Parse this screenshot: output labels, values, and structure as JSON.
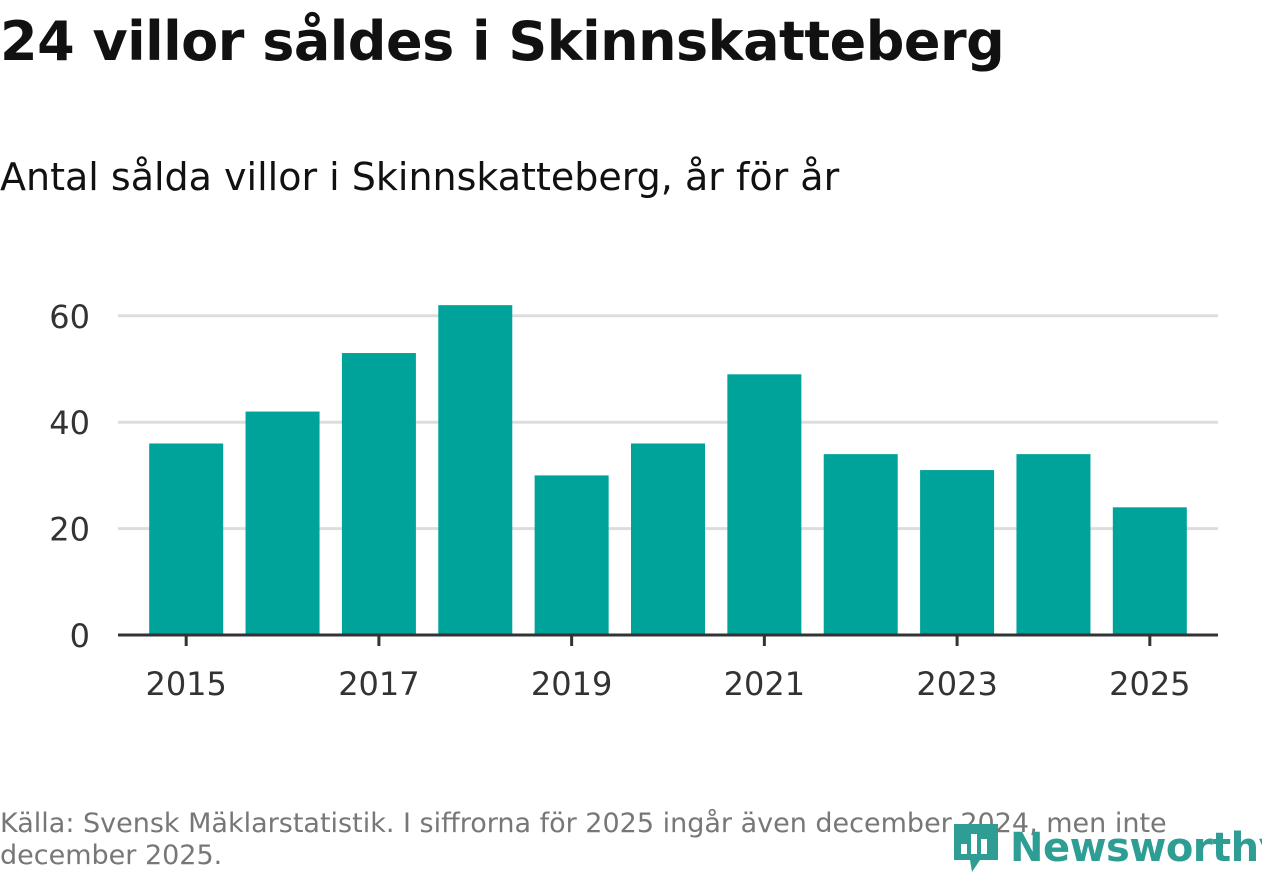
{
  "header": {
    "title": "24 villor såldes i Skinnskatteberg",
    "subtitle": "Antal sålda villor i Skinnskatteberg, år för år"
  },
  "footer": {
    "source": "Källa: Svensk Mäklarstatistik. I siffrorna för 2025 ingår även december 2024, men inte december 2025."
  },
  "brand": {
    "name": "Newsworthy",
    "icon": "bar-chart-speech-bubble-icon",
    "color": "#2e9e95"
  },
  "colors": {
    "bar": "#00a39a",
    "grid": "#dddddd",
    "axis": "#333333",
    "tick_text": "#333333"
  },
  "chart_data": {
    "type": "bar",
    "title": "Antal sålda villor i Skinnskatteberg, år för år",
    "xlabel": "",
    "ylabel": "",
    "categories": [
      "2015",
      "2016",
      "2017",
      "2018",
      "2019",
      "2020",
      "2021",
      "2022",
      "2023",
      "2024",
      "2025"
    ],
    "values": [
      36,
      42,
      53,
      62,
      30,
      36,
      49,
      34,
      31,
      34,
      24
    ],
    "x_tick_labels": [
      "2015",
      "2017",
      "2019",
      "2021",
      "2023",
      "2025"
    ],
    "y_ticks": [
      0,
      20,
      40,
      60
    ],
    "y_tick_labels": [
      "0",
      "20",
      "40",
      "60"
    ],
    "ylim": [
      0,
      65
    ],
    "grid": true,
    "legend": "none"
  }
}
